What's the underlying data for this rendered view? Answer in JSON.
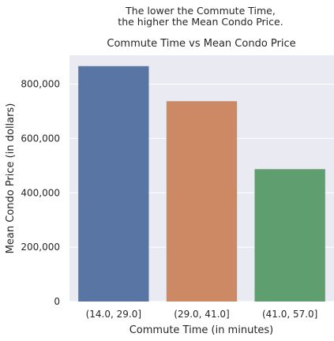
{
  "chart_data": {
    "type": "bar",
    "suptitle_lines": [
      "The lower the Commute Time,",
      "the higher the Mean Condo Price."
    ],
    "title": "Commute Time vs Mean Condo Price",
    "xlabel": "Commute Time (in minutes)",
    "ylabel": "Mean Condo Price (in dollars)",
    "categories": [
      "(14.0, 29.0]",
      "(29.0, 41.0]",
      "(41.0, 57.0]"
    ],
    "values": [
      866000,
      737000,
      487000
    ],
    "colors": [
      "#5975a4",
      "#cc8963",
      "#5f9e6e"
    ],
    "ylim": [
      0,
      906000
    ],
    "yticks": [
      0,
      200000,
      400000,
      600000,
      800000
    ],
    "ytick_labels": [
      "0",
      "200,000",
      "400,000",
      "600,000",
      "800,000"
    ],
    "grid": true,
    "background": "#eaeaf2"
  }
}
